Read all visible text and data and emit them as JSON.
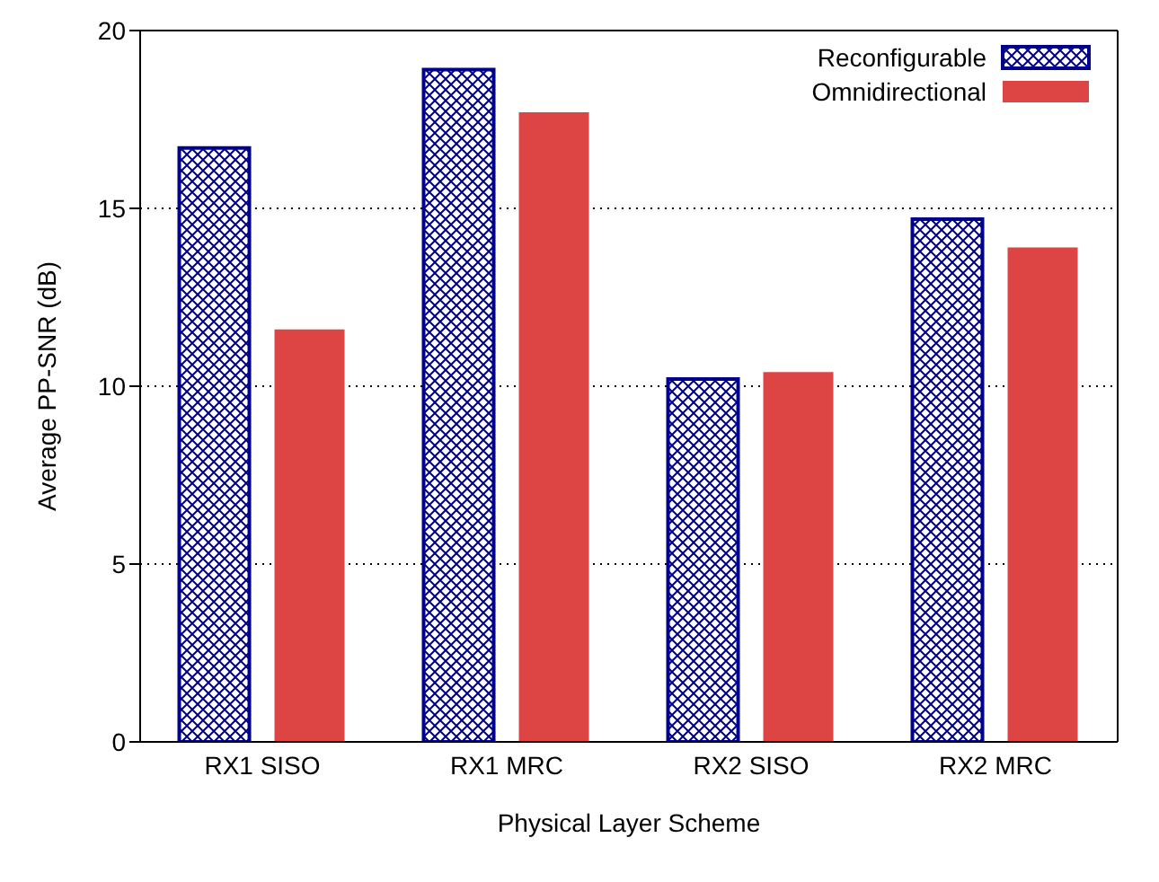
{
  "chart_data": {
    "type": "bar",
    "xlabel": "Physical Layer Scheme",
    "ylabel": "Average PP-SNR (dB)",
    "categories": [
      "RX1 SISO",
      "RX1 MRC",
      "RX2 SISO",
      "RX2 MRC"
    ],
    "series": [
      {
        "name": "Reconfigurable",
        "color": "#00008b",
        "values": [
          16.7,
          18.9,
          10.2,
          14.7
        ]
      },
      {
        "name": "Omnidirectional",
        "color": "#dd4444",
        "values": [
          11.6,
          17.7,
          10.4,
          13.9
        ]
      }
    ],
    "ylim": [
      0,
      20
    ],
    "yticks": [
      0,
      5,
      10,
      15,
      20
    ],
    "grid": "y",
    "legend": "top right"
  }
}
